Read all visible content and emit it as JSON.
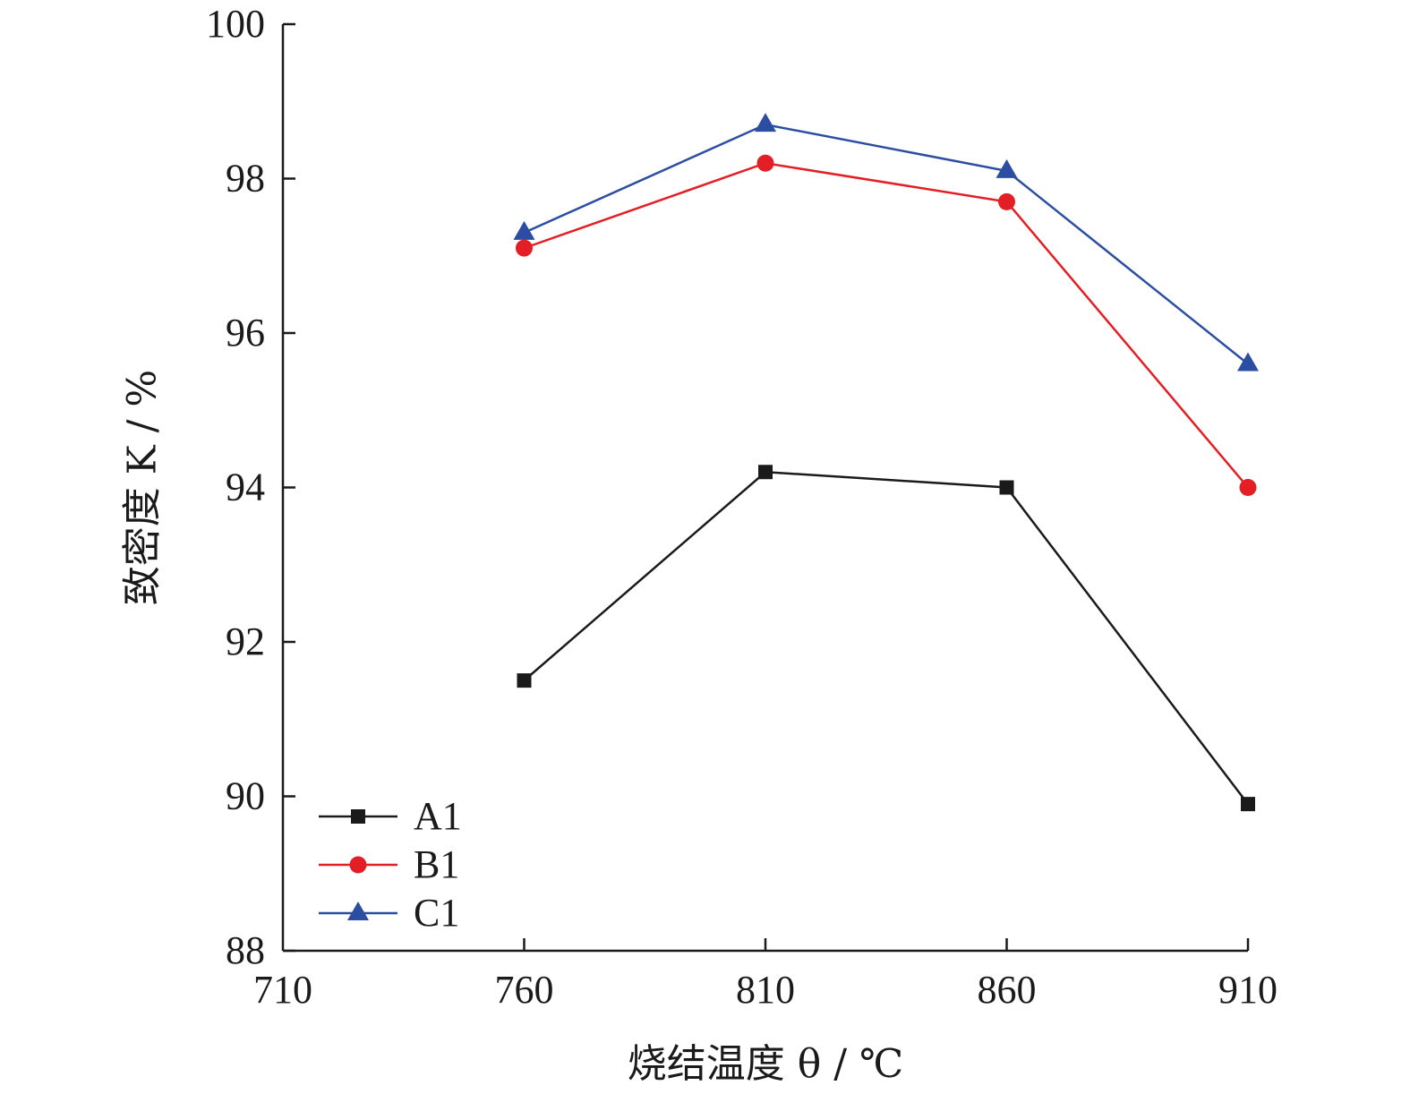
{
  "chart_data": {
    "type": "line",
    "title": "",
    "xlabel": "烧结温度 θ / ℃",
    "ylabel": "致密度 K / %",
    "x": [
      760,
      810,
      860,
      910
    ],
    "xlim": [
      710,
      910
    ],
    "ylim": [
      88,
      100
    ],
    "xticks": [
      710,
      760,
      810,
      860,
      910
    ],
    "yticks": [
      88,
      90,
      92,
      94,
      96,
      98,
      100
    ],
    "grid": false,
    "legend_position": "bottom-left",
    "series": [
      {
        "name": "A1",
        "values": [
          91.5,
          94.2,
          94.0,
          89.9
        ],
        "color": "#1a1a1a",
        "marker": "square"
      },
      {
        "name": "B1",
        "values": [
          97.1,
          98.2,
          97.7,
          94.0
        ],
        "color": "#e31e24",
        "marker": "circle"
      },
      {
        "name": "C1",
        "values": [
          97.3,
          98.7,
          98.1,
          95.6
        ],
        "color": "#2b4ea2",
        "marker": "triangle"
      }
    ]
  }
}
